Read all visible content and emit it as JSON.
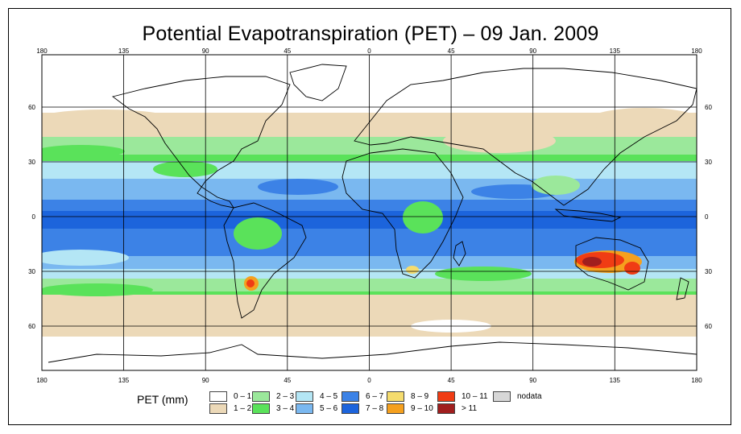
{
  "title": "Potential Evapotranspiration (PET) – 09 Jan. 2009",
  "axes": {
    "lon_top": [
      "180",
      "135",
      "90",
      "45",
      "0",
      "45",
      "90",
      "135",
      "180"
    ],
    "lon_bottom": [
      "180",
      "135",
      "90",
      "45",
      "0",
      "45",
      "90",
      "135",
      "180"
    ],
    "lat_left": [
      "60",
      "30",
      "0",
      "30",
      "60"
    ],
    "lat_right": [
      "60",
      "30",
      "0",
      "30",
      "60"
    ]
  },
  "legend": {
    "title": "PET (mm)",
    "items": [
      {
        "label": "0 – 1",
        "color": "#ffffff"
      },
      {
        "label": "1 – 2",
        "color": "#ecd9b8"
      },
      {
        "label": "2 – 3",
        "color": "#9be89b"
      },
      {
        "label": "3 – 4",
        "color": "#5ae25a"
      },
      {
        "label": "4 – 5",
        "color": "#b4e6f5"
      },
      {
        "label": "5 – 6",
        "color": "#7ab8f0"
      },
      {
        "label": "6 – 7",
        "color": "#3c82e6"
      },
      {
        "label": "7 – 8",
        "color": "#1c64dc"
      },
      {
        "label": "8 – 9",
        "color": "#f5dc6e"
      },
      {
        "label": "9 – 10",
        "color": "#f5a01e"
      },
      {
        "label": "10 – 11",
        "color": "#f03c14"
      },
      {
        "label": "> 11",
        "color": "#a01e1e"
      },
      {
        "label": "nodata",
        "color": "#d7d7d7"
      }
    ]
  },
  "map_colors": {
    "white": "#ffffff",
    "tan": "#ecd9b8",
    "lightgreen": "#9be89b",
    "green": "#5ae25a",
    "lightblue": "#b4e6f5",
    "midblue": "#7ab8f0",
    "blue": "#3c82e6",
    "darkblue": "#1c64dc",
    "yellow": "#f5dc6e",
    "orange": "#f5a01e",
    "red": "#f03c14",
    "darkred": "#a01e1e"
  }
}
